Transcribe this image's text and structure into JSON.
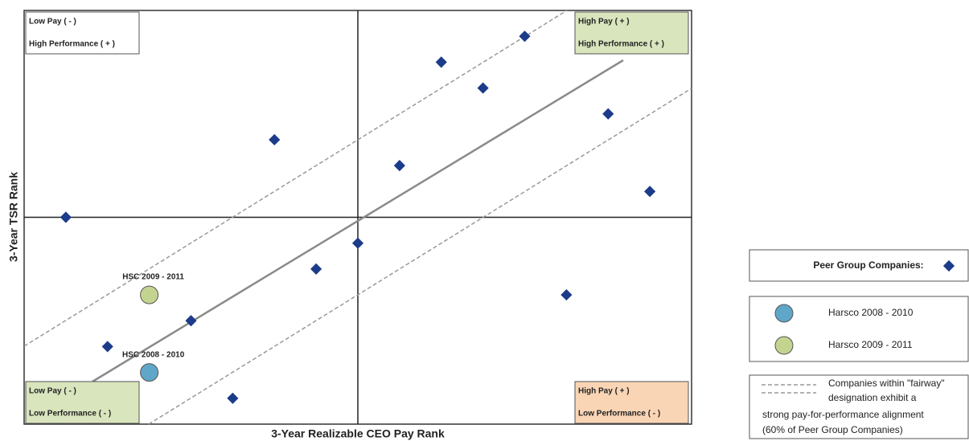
{
  "chart_data": {
    "type": "scatter",
    "x_label": "3-Year Realizable CEO Pay Rank",
    "y_label": "3-Year TSR Rank",
    "xlim": [
      0,
      16
    ],
    "ylim": [
      0,
      16
    ],
    "series": [
      {
        "name": "Peer Group Companies:",
        "color": "#1c3b8a",
        "marker": "diamond",
        "x": [
          1,
          2,
          4,
          5,
          6,
          7,
          8,
          9,
          10,
          11,
          12,
          13,
          14,
          15
        ],
        "y": [
          8,
          3,
          4,
          1,
          11,
          6,
          7,
          10,
          14,
          13,
          15,
          5,
          12,
          9
        ]
      },
      {
        "name": "Harsco 2008 - 2010",
        "color": "#5fa6c9",
        "marker": "circle",
        "x": [
          3
        ],
        "y": [
          2
        ],
        "point_label": "HSC 2008 - 2010"
      },
      {
        "name": "Harsco 2009 - 2011",
        "color": "#c3d48f",
        "marker": "circle",
        "x": [
          3
        ],
        "y": [
          5
        ],
        "point_label": "HSC 2009 - 2011"
      }
    ],
    "quadrant_labels": [
      {
        "lines": [
          "Low Pay ( - )",
          "High Performance ( + )"
        ],
        "color": "#ffffff"
      },
      {
        "lines": [
          "High Pay ( + )",
          "High Performance ( + )"
        ],
        "color": "#d9e5bd"
      },
      {
        "lines": [
          "Low Pay ( - )",
          "Low Performance ( - )"
        ],
        "color": "#d9e5bd"
      },
      {
        "lines": [
          "High Pay ( + )",
          "Low Performance ( - )"
        ],
        "color": "#f9d5b5"
      }
    ],
    "fairway_note": [
      "Companies within \"fairway\"",
      "designation exhibit a",
      "strong pay-for-performance alignment",
      "(60% of Peer Group Companies)"
    ]
  }
}
